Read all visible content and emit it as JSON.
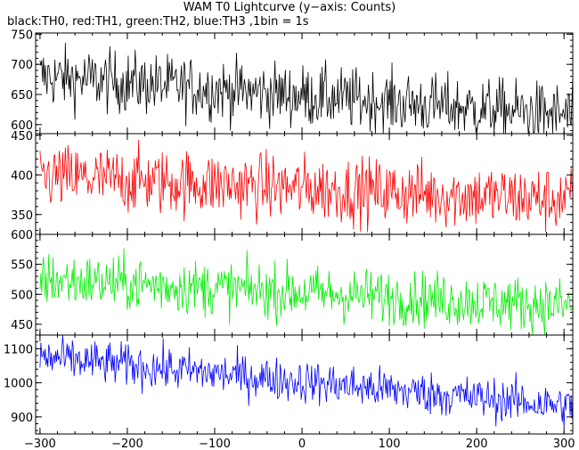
{
  "title": "WAM T0 Lightcurve (y−axis: Counts)",
  "subtitle": "black:TH0, red:TH1, green:TH2, blue:TH3 ,1bin = 1s",
  "chart_data": {
    "type": "line",
    "x_range": [
      -305,
      310
    ],
    "x_ticks": [
      -300,
      -200,
      -100,
      0,
      100,
      200,
      300
    ],
    "x_tick_labels": [
      "−300",
      "−200",
      "−100",
      "0",
      "100",
      "200",
      "300"
    ],
    "bin_seconds": 1,
    "series": [
      {
        "name": "TH0",
        "color": "#000000",
        "ylim": [
          585,
          752
        ],
        "yticks": [
          600,
          650,
          700,
          750
        ],
        "trend_start": 680,
        "trend_end": 615,
        "noise": 26
      },
      {
        "name": "TH1",
        "color": "#ff0000",
        "ylim": [
          325,
          452
        ],
        "yticks": [
          350,
          400,
          450
        ],
        "trend_start": 398,
        "trend_end": 368,
        "noise": 21
      },
      {
        "name": "TH2",
        "color": "#00ee00",
        "ylim": [
          432,
          600
        ],
        "yticks": [
          450,
          500,
          550,
          600
        ],
        "trend_start": 525,
        "trend_end": 480,
        "noise": 23
      },
      {
        "name": "TH3",
        "color": "#0000ff",
        "ylim": [
          850,
          1140
        ],
        "yticks": [
          900,
          1000,
          1100
        ],
        "trend_start": 1075,
        "trend_end": 930,
        "noise": 32
      }
    ]
  }
}
